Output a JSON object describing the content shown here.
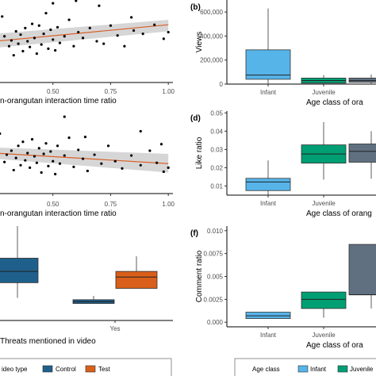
{
  "chart_data": [
    {
      "panel": "a",
      "type": "scatter",
      "panel_label": "",
      "xlabel": "n-orangutan interaction time ratio",
      "ylabel": "",
      "xlim": [
        0.25,
        1.02
      ],
      "xticks": [
        0.5,
        0.75,
        1.0
      ],
      "xtick_labels": [
        "0.50",
        "0.75",
        "1.00"
      ],
      "ylim": [
        0,
        10
      ],
      "grid": false,
      "points": [
        [
          0.26,
          6.0
        ],
        [
          0.28,
          8.0
        ],
        [
          0.29,
          5.6
        ],
        [
          0.31,
          4.4
        ],
        [
          0.32,
          5.1
        ],
        [
          0.33,
          3.3
        ],
        [
          0.34,
          6.2
        ],
        [
          0.35,
          4.7
        ],
        [
          0.36,
          5.8
        ],
        [
          0.37,
          3.8
        ],
        [
          0.38,
          6.6
        ],
        [
          0.39,
          5.0
        ],
        [
          0.4,
          4.3
        ],
        [
          0.41,
          7.1
        ],
        [
          0.42,
          5.4
        ],
        [
          0.43,
          3.5
        ],
        [
          0.44,
          6.9
        ],
        [
          0.45,
          4.6
        ],
        [
          0.46,
          5.9
        ],
        [
          0.47,
          8.4
        ],
        [
          0.48,
          4.1
        ],
        [
          0.49,
          6.4
        ],
        [
          0.5,
          5.2
        ],
        [
          0.51,
          3.9
        ],
        [
          0.52,
          6.7
        ],
        [
          0.53,
          4.8
        ],
        [
          0.55,
          5.6
        ],
        [
          0.57,
          7.6
        ],
        [
          0.59,
          4.4
        ],
        [
          0.61,
          6.1
        ],
        [
          0.63,
          5.4
        ],
        [
          0.66,
          6.6
        ],
        [
          0.69,
          5.0
        ],
        [
          0.72,
          4.7
        ],
        [
          0.75,
          6.9
        ],
        [
          0.78,
          5.7
        ],
        [
          0.81,
          4.4
        ],
        [
          0.85,
          6.3
        ],
        [
          0.89,
          5.9
        ],
        [
          0.94,
          7.0
        ],
        [
          0.98,
          5.3
        ],
        [
          1.0,
          6.1
        ],
        [
          0.5,
          9.6
        ],
        [
          0.6,
          9.9
        ],
        [
          0.7,
          9.3
        ],
        [
          0.84,
          7.9
        ]
      ],
      "fit_line": {
        "x": [
          0.25,
          1.0
        ],
        "y": [
          5.0,
          7.0
        ]
      },
      "ci_band": {
        "x": [
          0.25,
          1.0
        ],
        "lower": [
          4.2,
          6.2
        ],
        "upper": [
          5.9,
          7.6
        ]
      },
      "point_color": "#000000",
      "line_color": "#d95f27",
      "band_color": "#cfcfcf"
    },
    {
      "panel": "b",
      "type": "box",
      "panel_label": "(b)",
      "xlabel": "Age class of ora",
      "ylabel": "Views",
      "ylim": [
        0,
        700000
      ],
      "yticks": [
        0,
        200000,
        400000,
        600000
      ],
      "ytick_labels": [
        "0",
        "200,000",
        "400,000",
        "600,000"
      ],
      "categories": [
        "Infant",
        "Juvenile"
      ],
      "boxes": [
        {
          "category": "Infant",
          "min": 5000,
          "q1": 40000,
          "median": 75000,
          "q3": 285000,
          "max": 630000,
          "color": "#56b4e9"
        },
        {
          "category": "Juvenile",
          "min": 5000,
          "q1": 8000,
          "median": 30000,
          "q3": 50000,
          "max": 75000,
          "color": "#009e73"
        },
        {
          "category": "",
          "min": 5000,
          "q1": 15000,
          "median": 30000,
          "q3": 50000,
          "max": 80000,
          "color": "#607080"
        }
      ]
    },
    {
      "panel": "c",
      "type": "scatter",
      "panel_label": "",
      "xlabel": "n-orangutan interaction time ratio",
      "ylabel": "",
      "xlim": [
        0.25,
        1.02
      ],
      "xticks": [
        0.5,
        0.75,
        1.0
      ],
      "xtick_labels": [
        "0.50",
        "0.75",
        "1.00"
      ],
      "ylim": [
        0,
        10
      ],
      "grid": false,
      "points": [
        [
          0.27,
          7.4
        ],
        [
          0.29,
          3.9
        ],
        [
          0.3,
          4.8
        ],
        [
          0.32,
          5.3
        ],
        [
          0.33,
          2.9
        ],
        [
          0.34,
          4.4
        ],
        [
          0.35,
          5.9
        ],
        [
          0.36,
          3.5
        ],
        [
          0.37,
          6.4
        ],
        [
          0.38,
          4.1
        ],
        [
          0.39,
          5.0
        ],
        [
          0.4,
          3.2
        ],
        [
          0.41,
          6.7
        ],
        [
          0.42,
          4.6
        ],
        [
          0.43,
          3.8
        ],
        [
          0.44,
          5.6
        ],
        [
          0.45,
          2.6
        ],
        [
          0.46,
          4.9
        ],
        [
          0.47,
          6.2
        ],
        [
          0.48,
          3.4
        ],
        [
          0.49,
          5.2
        ],
        [
          0.5,
          4.0
        ],
        [
          0.51,
          2.4
        ],
        [
          0.52,
          5.9
        ],
        [
          0.53,
          3.7
        ],
        [
          0.55,
          4.7
        ],
        [
          0.57,
          6.9
        ],
        [
          0.59,
          3.3
        ],
        [
          0.61,
          5.4
        ],
        [
          0.63,
          4.3
        ],
        [
          0.65,
          2.8
        ],
        [
          0.68,
          4.8
        ],
        [
          0.71,
          3.7
        ],
        [
          0.74,
          5.9
        ],
        [
          0.77,
          4.0
        ],
        [
          0.8,
          3.1
        ],
        [
          0.84,
          4.7
        ],
        [
          0.88,
          3.5
        ],
        [
          0.92,
          5.3
        ],
        [
          0.95,
          3.8
        ],
        [
          0.98,
          2.7
        ],
        [
          1.0,
          3.2
        ],
        [
          0.64,
          7.0
        ],
        [
          0.88,
          7.7
        ],
        [
          0.97,
          6.1
        ],
        [
          0.55,
          9.5
        ]
      ],
      "fit_line": {
        "x": [
          0.25,
          1.0
        ],
        "y": [
          5.0,
          3.7
        ]
      },
      "ci_band": {
        "x": [
          0.25,
          1.0
        ],
        "lower": [
          4.3,
          2.6
        ],
        "upper": [
          5.7,
          4.9
        ]
      },
      "point_color": "#000000",
      "line_color": "#d95f27",
      "band_color": "#cfcfcf"
    },
    {
      "panel": "d",
      "type": "box",
      "panel_label": "(d)",
      "xlabel": "Age class of orang",
      "ylabel": "Like ratio",
      "ylim": [
        0.005,
        0.051
      ],
      "yticks": [
        0.01,
        0.02,
        0.03,
        0.04,
        0.05
      ],
      "ytick_labels": [
        "0.01",
        "0.02",
        "0.03",
        "0.04",
        "0.05"
      ],
      "categories": [
        "Infant",
        "Juvenile"
      ],
      "boxes": [
        {
          "category": "Infant",
          "min": 0.005,
          "q1": 0.0075,
          "median": 0.0122,
          "q3": 0.0142,
          "max": 0.024,
          "color": "#56b4e9"
        },
        {
          "category": "Juvenile",
          "min": 0.0135,
          "q1": 0.0225,
          "median": 0.0275,
          "q3": 0.0325,
          "max": 0.045,
          "color": "#009e73"
        },
        {
          "category": "",
          "min": 0.014,
          "q1": 0.023,
          "median": 0.029,
          "q3": 0.033,
          "max": 0.04,
          "color": "#607080"
        }
      ]
    },
    {
      "panel": "e",
      "type": "box",
      "panel_label": "",
      "xlabel": "Threats mentioned in video",
      "ylabel": "",
      "ylim": [
        0,
        10
      ],
      "categories": [
        "",
        "Yes"
      ],
      "boxes": [
        {
          "group": "",
          "series": "Control",
          "min": 2.4,
          "q1": 4.0,
          "median": 5.2,
          "q3": 6.6,
          "max": 10.0,
          "color": "#1f5f8b"
        },
        {
          "group": "Yes",
          "series": "Control",
          "min": 1.8,
          "q1": 1.8,
          "median": 2.0,
          "q3": 2.2,
          "max": 2.6,
          "color": "#1f5f8b"
        },
        {
          "group": "Yes",
          "series": "Test",
          "min": 3.4,
          "q1": 3.4,
          "median": 4.6,
          "q3": 5.2,
          "max": 6.8,
          "color": "#d95f1a"
        }
      ],
      "legend": {
        "title": "ideo type",
        "entries": [
          {
            "label": "Control",
            "color": "#1f5f8b"
          },
          {
            "label": "Test",
            "color": "#d95f1a"
          }
        ]
      }
    },
    {
      "panel": "f",
      "type": "box",
      "panel_label": "(f)",
      "xlabel": "Age class of ora",
      "ylabel": "Comment ratio",
      "ylim": [
        -0.0005,
        0.0105
      ],
      "yticks": [
        0.0,
        0.0025,
        0.005,
        0.0075,
        0.01
      ],
      "ytick_labels": [
        "0.000",
        "0.0025",
        "0.005",
        "0.0075",
        "0.010"
      ],
      "categories": [
        "Infant",
        "Juvenile"
      ],
      "boxes": [
        {
          "category": "Infant",
          "min": 0.0004,
          "q1": 0.0004,
          "median": 0.0007,
          "q3": 0.0011,
          "max": 0.0011,
          "color": "#56b4e9"
        },
        {
          "category": "Juvenile",
          "min": 0.0005,
          "q1": 0.0015,
          "median": 0.0025,
          "q3": 0.0033,
          "max": 0.0033,
          "color": "#009e73"
        },
        {
          "category": "",
          "min": 0.0015,
          "q1": 0.003,
          "median": 0.003,
          "q3": 0.0085,
          "max": 0.0085,
          "color": "#607080"
        }
      ],
      "legend": {
        "title": "Age class",
        "entries": [
          {
            "label": "Infant",
            "color": "#56b4e9"
          },
          {
            "label": "Juvenile",
            "color": "#009e73"
          }
        ]
      }
    }
  ]
}
